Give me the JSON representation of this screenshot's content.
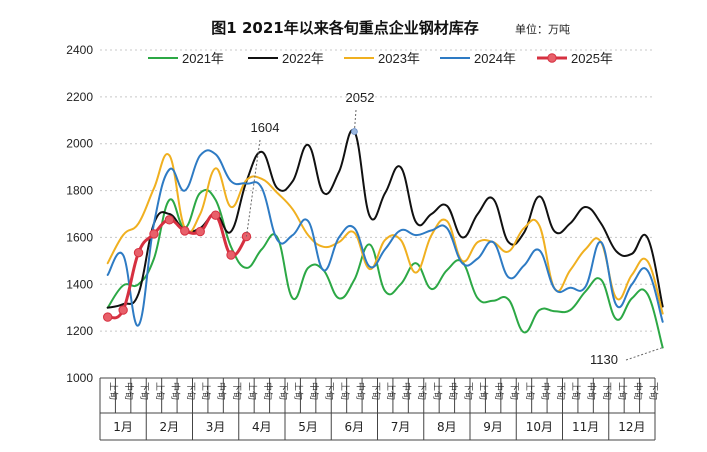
{
  "chart_data": {
    "type": "line",
    "title": "图1  2021年以来各旬重点企业钢材库存",
    "unit": "单位：万吨",
    "ylim": [
      1000,
      2400
    ],
    "yticks": [
      1000,
      1200,
      1400,
      1600,
      1800,
      2000,
      2200,
      2400
    ],
    "grid": true,
    "legend_position": "top",
    "months": [
      "1月",
      "2月",
      "3月",
      "4月",
      "5月",
      "6月",
      "7月",
      "8月",
      "9月",
      "10月",
      "11月",
      "12月"
    ],
    "subperiods": [
      "上旬",
      "中旬",
      "下旬"
    ],
    "series": [
      {
        "name": "2021年",
        "color": "#2ca845",
        "markers": false,
        "values": [
          1300,
          1395,
          1400,
          1510,
          1760,
          1640,
          1790,
          1760,
          1560,
          1470,
          1550,
          1600,
          1340,
          1470,
          1460,
          1340,
          1420,
          1570,
          1370,
          1400,
          1490,
          1380,
          1460,
          1495,
          1340,
          1330,
          1335,
          1195,
          1290,
          1285,
          1290,
          1370,
          1420,
          1250,
          1340,
          1360,
          1130
        ]
      },
      {
        "name": "2022年",
        "color": "#111111",
        "markers": false,
        "values": [
          1300,
          1315,
          1360,
          1660,
          1700,
          1630,
          1640,
          1700,
          1625,
          1840,
          1965,
          1810,
          1840,
          1995,
          1790,
          1880,
          2052,
          1690,
          1790,
          1900,
          1665,
          1700,
          1735,
          1600,
          1700,
          1765,
          1580,
          1620,
          1775,
          1625,
          1660,
          1730,
          1660,
          1540,
          1530,
          1600,
          1305
        ]
      },
      {
        "name": "2023年",
        "color": "#f0b020",
        "markers": false,
        "values": [
          1490,
          1610,
          1660,
          1810,
          1950,
          1640,
          1700,
          1895,
          1730,
          1845,
          1850,
          1790,
          1720,
          1610,
          1560,
          1580,
          1620,
          1465,
          1590,
          1590,
          1450,
          1610,
          1670,
          1500,
          1580,
          1580,
          1540,
          1640,
          1650,
          1380,
          1460,
          1550,
          1580,
          1340,
          1440,
          1500,
          1275
        ]
      },
      {
        "name": "2024年",
        "color": "#2e7bc4",
        "markers": false,
        "values": [
          1440,
          1525,
          1225,
          1660,
          1890,
          1800,
          1950,
          1955,
          1840,
          1830,
          1810,
          1590,
          1610,
          1670,
          1460,
          1600,
          1640,
          1475,
          1550,
          1630,
          1610,
          1630,
          1640,
          1490,
          1510,
          1580,
          1430,
          1480,
          1545,
          1380,
          1385,
          1390,
          1580,
          1310,
          1400,
          1460,
          1240
        ]
      },
      {
        "name": "2025年",
        "color": "#d63040",
        "markers": true,
        "values": [
          1260,
          1290,
          1535,
          1615,
          1675,
          1628,
          1625,
          1695,
          1525,
          1604
        ]
      }
    ],
    "annotations": [
      {
        "text": "1604",
        "series": "2025年",
        "index": 9
      },
      {
        "text": "2052",
        "series": "2022年",
        "index": 16
      },
      {
        "text": "1130",
        "series": "2021年",
        "index": 36
      }
    ]
  }
}
